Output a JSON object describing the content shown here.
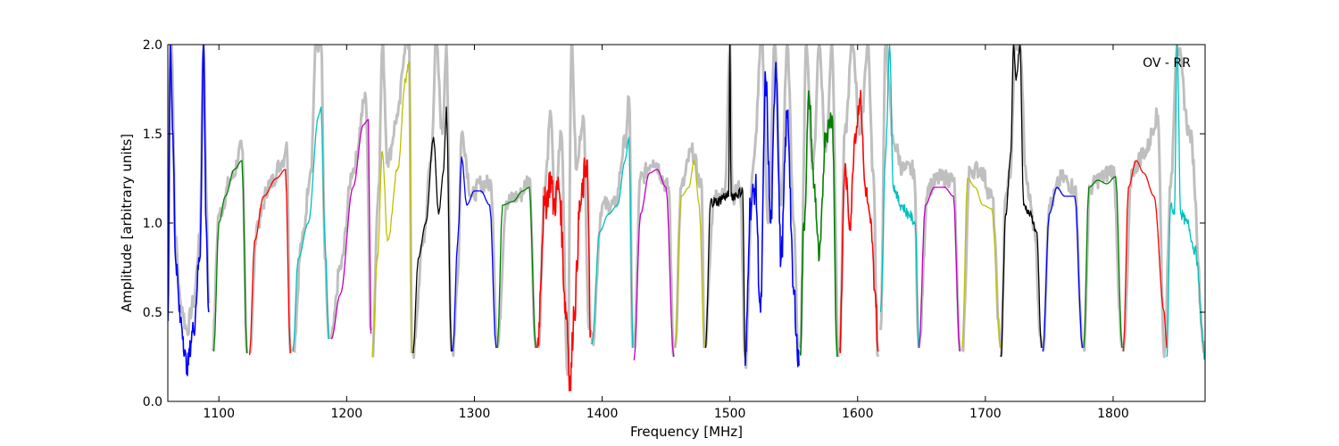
{
  "chart_data": {
    "type": "line",
    "annotation": "OV - RR",
    "xlabel": "Frequency [MHz]",
    "ylabel": "Amplitude [arbitrary units]",
    "xlim": [
      1060,
      1872
    ],
    "ylim": [
      0.0,
      2.0
    ],
    "x_ticks": [
      1100,
      1200,
      1300,
      1400,
      1500,
      1600,
      1700,
      1800
    ],
    "x_tick_labels": [
      "1100",
      "1200",
      "1300",
      "1400",
      "1500",
      "1600",
      "1700",
      "1800"
    ],
    "y_ticks": [
      0.0,
      0.5,
      1.0,
      1.5,
      2.0
    ],
    "y_tick_labels": [
      "0.0",
      "0.5",
      "1.0",
      "1.5",
      "2.0"
    ],
    "grid": false,
    "legend": "none",
    "envelope_color": "#bfbfbf",
    "colors": {
      "blue": "#0000ff",
      "green": "#008000",
      "red": "#ff0000",
      "cyan": "#00bfbf",
      "magenta": "#bf00bf",
      "olive": "#bfbf00",
      "black": "#000000"
    },
    "envelope": [
      {
        "x": [
          1060,
          1062,
          1063,
          1066,
          1070,
          1075,
          1080,
          1085,
          1088,
          1090,
          1092
        ],
        "y": [
          0.45,
          2.0,
          2.0,
          0.9,
          0.55,
          0.4,
          0.55,
          0.9,
          2.0,
          1.2,
          0.55
        ]
      },
      {
        "x": [
          1095,
          1100,
          1110,
          1118,
          1122
        ],
        "y": [
          0.3,
          1.05,
          1.25,
          1.42,
          0.27
        ]
      },
      {
        "x": [
          1124,
          1130,
          1140,
          1150,
          1153,
          1156
        ],
        "y": [
          0.27,
          1.0,
          1.22,
          1.35,
          1.45,
          0.27
        ]
      },
      {
        "x": [
          1158,
          1165,
          1172,
          1176,
          1180,
          1183,
          1186
        ],
        "y": [
          0.28,
          0.9,
          1.3,
          2.0,
          2.0,
          0.8,
          0.35
        ]
      },
      {
        "x": [
          1188,
          1195,
          1205,
          1215,
          1219
        ],
        "y": [
          0.35,
          0.75,
          1.3,
          1.7,
          0.4
        ]
      },
      {
        "x": [
          1220,
          1225,
          1228,
          1232,
          1240,
          1246,
          1249,
          1251
        ],
        "y": [
          0.25,
          1.2,
          2.0,
          1.35,
          1.6,
          2.0,
          2.0,
          0.27
        ]
      },
      {
        "x": [
          1252,
          1260,
          1266,
          1270,
          1275,
          1278,
          1282
        ],
        "y": [
          0.27,
          0.9,
          1.35,
          2.0,
          1.5,
          2.0,
          0.28
        ]
      },
      {
        "x": [
          1283,
          1287,
          1290,
          1298,
          1305,
          1313,
          1318
        ],
        "y": [
          0.28,
          0.7,
          1.5,
          1.15,
          1.22,
          1.22,
          0.3
        ]
      },
      {
        "x": [
          1318,
          1325,
          1335,
          1343,
          1348
        ],
        "y": [
          0.3,
          1.12,
          1.15,
          1.25,
          0.3
        ]
      },
      {
        "x": [
          1350,
          1355,
          1360,
          1363,
          1368,
          1373,
          1376,
          1380,
          1385,
          1390
        ],
        "y": [
          0.3,
          1.2,
          1.6,
          1.1,
          1.5,
          0.15,
          2.0,
          1.3,
          1.6,
          0.4
        ]
      },
      {
        "x": [
          1392,
          1400,
          1410,
          1418,
          1421,
          1424
        ],
        "y": [
          0.32,
          1.1,
          1.1,
          1.45,
          1.7,
          0.3
        ]
      },
      {
        "x": [
          1425,
          1430,
          1440,
          1452,
          1456
        ],
        "y": [
          0.3,
          1.25,
          1.35,
          1.2,
          0.25
        ]
      },
      {
        "x": [
          1457,
          1462,
          1470,
          1478,
          1480
        ],
        "y": [
          0.3,
          1.2,
          1.4,
          1.2,
          0.3
        ]
      },
      {
        "x": [
          1480,
          1488,
          1496,
          1500,
          1502,
          1508,
          1512
        ],
        "y": [
          0.3,
          1.15,
          1.15,
          2.0,
          1.15,
          1.2,
          0.25
        ]
      },
      {
        "x": [
          1512,
          1518,
          1525,
          1530,
          1535,
          1540,
          1545,
          1550,
          1554
        ],
        "y": [
          0.2,
          1.3,
          2.0,
          1.0,
          2.0,
          1.1,
          2.0,
          1.0,
          0.2
        ]
      },
      {
        "x": [
          1555,
          1560,
          1565,
          1570,
          1575,
          1580,
          1585
        ],
        "y": [
          0.3,
          2.0,
          1.3,
          2.0,
          1.4,
          2.0,
          0.25
        ]
      },
      {
        "x": [
          1586,
          1590,
          1596,
          1602,
          1608,
          1612,
          1616
        ],
        "y": [
          0.3,
          1.5,
          2.0,
          1.5,
          2.0,
          1.3,
          0.25
        ]
      },
      {
        "x": [
          1618,
          1622,
          1628,
          1636,
          1644,
          1648
        ],
        "y": [
          0.4,
          2.0,
          1.45,
          1.3,
          1.3,
          0.3
        ]
      },
      {
        "x": [
          1648,
          1655,
          1665,
          1675,
          1680
        ],
        "y": [
          0.3,
          1.2,
          1.25,
          1.25,
          0.28
        ]
      },
      {
        "x": [
          1682,
          1688,
          1696,
          1705,
          1712
        ],
        "y": [
          0.3,
          1.3,
          1.3,
          1.15,
          0.3
        ]
      },
      {
        "x": [
          1712,
          1716,
          1720,
          1723,
          1727,
          1732,
          1738,
          1744
        ],
        "y": [
          0.25,
          1.15,
          1.3,
          2.0,
          2.0,
          1.25,
          1.0,
          0.3
        ]
      },
      {
        "x": [
          1745,
          1750,
          1760,
          1770,
          1776
        ],
        "y": [
          0.28,
          1.1,
          1.25,
          1.2,
          0.3
        ]
      },
      {
        "x": [
          1777,
          1782,
          1790,
          1800,
          1807
        ],
        "y": [
          0.3,
          1.2,
          1.25,
          1.3,
          0.3
        ]
      },
      {
        "x": [
          1808,
          1815,
          1825,
          1835,
          1840,
          1845,
          1850,
          1860,
          1872
        ],
        "y": [
          0.28,
          1.3,
          1.4,
          1.6,
          0.25,
          1.2,
          2.0,
          1.5,
          0.28
        ]
      }
    ],
    "series": [
      {
        "color": "#0000ff",
        "noise": 0.06,
        "x": [
          1060,
          1062,
          1064,
          1066,
          1070,
          1075,
          1080,
          1085,
          1088,
          1090,
          1092
        ],
        "y": [
          0.45,
          2.0,
          1.5,
          0.8,
          0.45,
          0.2,
          0.4,
          0.8,
          2.0,
          1.0,
          0.5
        ]
      },
      {
        "color": "#008000",
        "noise": 0,
        "x": [
          1096,
          1100,
          1105,
          1112,
          1118,
          1122
        ],
        "y": [
          0.28,
          1.0,
          1.15,
          1.3,
          1.35,
          0.27
        ]
      },
      {
        "color": "#ff0000",
        "noise": 0,
        "x": [
          1124,
          1128,
          1135,
          1145,
          1152,
          1156
        ],
        "y": [
          0.26,
          0.9,
          1.15,
          1.25,
          1.3,
          0.27
        ]
      },
      {
        "color": "#00bfbf",
        "noise": 0,
        "x": [
          1158,
          1162,
          1170,
          1178,
          1180,
          1183,
          1186
        ],
        "y": [
          0.28,
          0.8,
          1.0,
          1.6,
          1.65,
          0.9,
          0.35
        ]
      },
      {
        "color": "#bf00bf",
        "noise": 0,
        "x": [
          1188,
          1195,
          1205,
          1213,
          1217,
          1219
        ],
        "y": [
          0.35,
          0.6,
          1.2,
          1.55,
          1.58,
          0.38
        ]
      },
      {
        "color": "#bfbf00",
        "noise": 0.02,
        "x": [
          1220,
          1224,
          1228,
          1232,
          1240,
          1246,
          1249,
          1251
        ],
        "y": [
          0.25,
          0.8,
          1.4,
          0.9,
          1.3,
          1.8,
          1.9,
          0.27
        ]
      },
      {
        "color": "#000000",
        "noise": 0,
        "x": [
          1252,
          1256,
          1262,
          1268,
          1272,
          1276,
          1278,
          1282
        ],
        "y": [
          0.27,
          0.8,
          1.0,
          1.48,
          1.05,
          1.3,
          1.65,
          0.28
        ]
      },
      {
        "color": "#0000ff",
        "noise": 0,
        "x": [
          1283,
          1287,
          1290,
          1294,
          1300,
          1305,
          1312,
          1317
        ],
        "y": [
          0.28,
          0.9,
          1.37,
          1.1,
          1.18,
          1.18,
          1.1,
          0.3
        ]
      },
      {
        "color": "#008000",
        "noise": 0,
        "x": [
          1318,
          1322,
          1330,
          1338,
          1343,
          1348
        ],
        "y": [
          0.3,
          1.1,
          1.12,
          1.18,
          1.2,
          0.3
        ]
      },
      {
        "color": "#ff0000",
        "noise": 0.1,
        "x": [
          1349,
          1355,
          1360,
          1362,
          1366,
          1372,
          1375,
          1378,
          1383,
          1388,
          1391
        ],
        "y": [
          0.3,
          1.1,
          1.25,
          1.1,
          1.2,
          0.5,
          0.1,
          0.5,
          1.1,
          1.35,
          0.4
        ]
      },
      {
        "color": "#00bfbf",
        "noise": 0,
        "x": [
          1392,
          1398,
          1405,
          1412,
          1418,
          1421,
          1424
        ],
        "y": [
          0.32,
          0.95,
          1.05,
          1.1,
          1.35,
          1.48,
          0.3
        ]
      },
      {
        "color": "#bf00bf",
        "noise": 0,
        "x": [
          1425,
          1430,
          1437,
          1443,
          1450,
          1456
        ],
        "y": [
          0.23,
          1.05,
          1.28,
          1.3,
          1.2,
          0.25
        ]
      },
      {
        "color": "#bfbf00",
        "noise": 0,
        "x": [
          1457,
          1462,
          1468,
          1472,
          1476,
          1480
        ],
        "y": [
          0.3,
          1.15,
          1.2,
          1.35,
          1.1,
          0.3
        ]
      },
      {
        "color": "#000000",
        "noise": 0.03,
        "x": [
          1481,
          1485,
          1490,
          1496,
          1499,
          1500,
          1501,
          1505,
          1510,
          1512
        ],
        "y": [
          0.3,
          1.12,
          1.12,
          1.15,
          1.15,
          2.0,
          1.15,
          1.16,
          1.18,
          0.2
        ]
      },
      {
        "color": "#0000ff",
        "noise": 0.09,
        "x": [
          1512,
          1516,
          1520,
          1524,
          1528,
          1532,
          1536,
          1540,
          1545,
          1550,
          1554
        ],
        "y": [
          0.2,
          1.1,
          1.2,
          0.5,
          1.8,
          1.0,
          1.9,
          0.8,
          1.6,
          0.6,
          0.2
        ]
      },
      {
        "color": "#008000",
        "noise": 0.07,
        "x": [
          1555,
          1558,
          1562,
          1566,
          1570,
          1575,
          1580,
          1584
        ],
        "y": [
          0.28,
          1.0,
          1.7,
          1.2,
          0.8,
          1.5,
          1.6,
          0.25
        ]
      },
      {
        "color": "#ff0000",
        "noise": 0.06,
        "x": [
          1586,
          1590,
          1594,
          1598,
          1602,
          1606,
          1610,
          1614,
          1616
        ],
        "y": [
          0.3,
          1.3,
          1.0,
          1.5,
          1.7,
          1.2,
          1.0,
          0.6,
          0.28
        ]
      },
      {
        "color": "#00bfbf",
        "noise": 0.03,
        "x": [
          1618,
          1622,
          1625,
          1628,
          1634,
          1640,
          1645,
          1648
        ],
        "y": [
          0.5,
          1.4,
          2.0,
          1.2,
          1.1,
          1.05,
          1.0,
          0.3
        ]
      },
      {
        "color": "#bf00bf",
        "noise": 0,
        "x": [
          1648,
          1653,
          1660,
          1668,
          1675,
          1680
        ],
        "y": [
          0.3,
          1.1,
          1.2,
          1.2,
          1.15,
          0.28
        ]
      },
      {
        "color": "#bfbf00",
        "noise": 0,
        "x": [
          1682,
          1686,
          1692,
          1698,
          1705,
          1712
        ],
        "y": [
          0.3,
          1.25,
          1.2,
          1.1,
          1.08,
          0.3
        ]
      },
      {
        "color": "#000000",
        "noise": 0.02,
        "x": [
          1712,
          1716,
          1720,
          1722,
          1724,
          1727,
          1730,
          1735,
          1740,
          1744
        ],
        "y": [
          0.25,
          1.05,
          1.4,
          2.0,
          1.8,
          2.0,
          1.1,
          1.05,
          0.95,
          0.3
        ]
      },
      {
        "color": "#0000ff",
        "noise": 0,
        "x": [
          1745,
          1750,
          1756,
          1762,
          1770,
          1776
        ],
        "y": [
          0.28,
          1.05,
          1.2,
          1.15,
          1.15,
          0.3
        ]
      },
      {
        "color": "#008000",
        "noise": 0,
        "x": [
          1777,
          1781,
          1788,
          1795,
          1802,
          1807
        ],
        "y": [
          0.3,
          1.2,
          1.24,
          1.22,
          1.26,
          0.3
        ]
      },
      {
        "color": "#ff0000",
        "noise": 0,
        "x": [
          1808,
          1812,
          1818,
          1824,
          1832,
          1840,
          1842
        ],
        "y": [
          0.28,
          1.2,
          1.35,
          1.28,
          1.15,
          0.5,
          0.3
        ]
      },
      {
        "color": "#00bfbf",
        "noise": 0.03,
        "x": [
          1842,
          1845,
          1848,
          1850,
          1853,
          1858,
          1864,
          1872
        ],
        "y": [
          0.25,
          1.1,
          1.05,
          2.0,
          1.05,
          1.0,
          0.85,
          0.25
        ]
      }
    ]
  }
}
